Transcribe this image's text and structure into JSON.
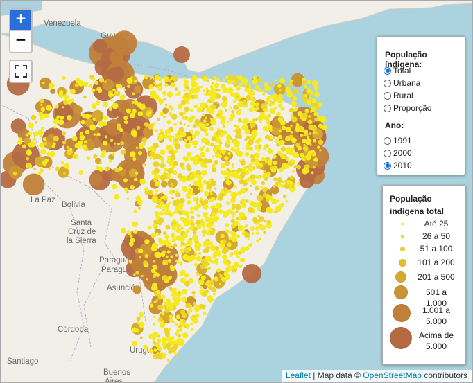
{
  "map": {
    "zoom_in_label": "+",
    "zoom_out_label": "−",
    "fullscreen_icon": "fullscreen-icon",
    "place_labels": [
      "Venezuela",
      "Guyana",
      "La Paz",
      "Bolivia",
      "Santa",
      "Cruz de",
      "la Sierra",
      "Paraguay",
      "Paraguai",
      "Asunción",
      "Córdoba",
      "Uruguay",
      "Santiago",
      "Buenos",
      "Aires"
    ],
    "colors": {
      "ocean": "#aad3df",
      "land": "#f2efe9",
      "marker_small": "#f5e92a",
      "marker_large": "#b96a3e"
    }
  },
  "layer_control": {
    "title": "População índigena:",
    "options": [
      {
        "label": "Total",
        "checked": true
      },
      {
        "label": "Urbana",
        "checked": false
      },
      {
        "label": "Rural",
        "checked": false
      },
      {
        "label": "Proporção",
        "checked": false
      }
    ],
    "year_title": "Ano:",
    "years": [
      {
        "label": "1991",
        "checked": false
      },
      {
        "label": "2000",
        "checked": false
      },
      {
        "label": "2010",
        "checked": true
      }
    ]
  },
  "legend": {
    "title_line1": "População",
    "title_line2": "indígena total",
    "items": [
      {
        "label1": "Até 25",
        "label2": "",
        "color": "#f5ea1e"
      },
      {
        "label1": "26 a 50",
        "label2": "",
        "color": "#f1e024"
      },
      {
        "label1": "51 a 100",
        "label2": "",
        "color": "#ecd42a"
      },
      {
        "label1": "101 a 200",
        "label2": "",
        "color": "#e1bf2c"
      },
      {
        "label1": "201 a 500",
        "label2": "",
        "color": "#d6aa30"
      },
      {
        "label1": "501 a 1.000",
        "label2": "",
        "color": "#cb9434"
      },
      {
        "label1": "1.001 a",
        "label2": "5.000",
        "color": "#c0803a"
      },
      {
        "label1": "Acima de",
        "label2": "5.000",
        "color": "#b56a42"
      }
    ]
  },
  "attribution": {
    "leaflet": "Leaflet",
    "sep": " | Map data © ",
    "osm": "OpenStreetMap",
    "suffix": " contributors"
  }
}
